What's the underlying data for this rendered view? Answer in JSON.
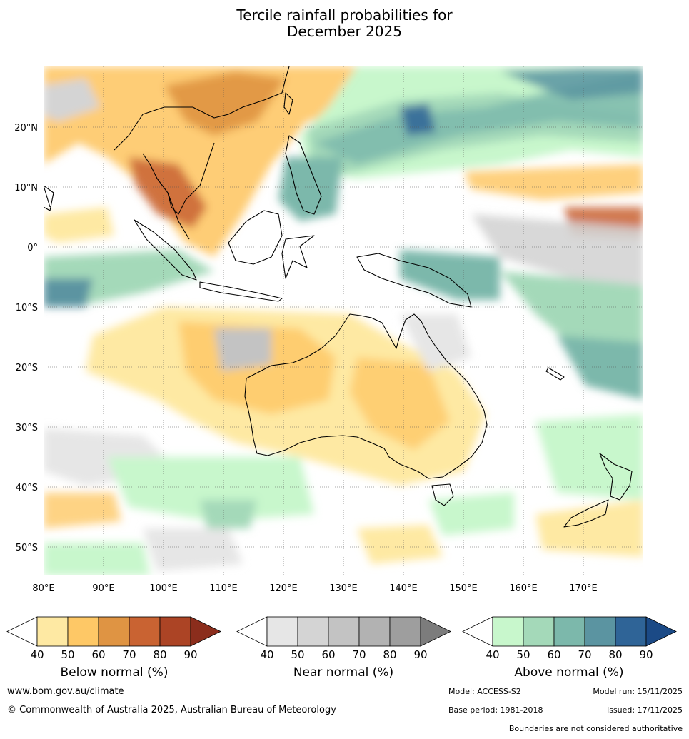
{
  "title_line1": "Tercile rainfall probabilities for",
  "title_line2": "December 2025",
  "map": {
    "lat_labels": [
      "20°N",
      "10°N",
      "0°",
      "10°S",
      "20°S",
      "30°S",
      "40°S",
      "50°S"
    ],
    "lon_labels": [
      "80°E",
      "90°E",
      "100°E",
      "110°E",
      "120°E",
      "130°E",
      "140°E",
      "150°E",
      "160°E",
      "170°E"
    ]
  },
  "colorbars": [
    {
      "label": "Below normal (%)",
      "ticks": [
        "40",
        "50",
        "60",
        "70",
        "80",
        "90"
      ],
      "colors": [
        "#ffffff",
        "#fee9a3",
        "#fec866",
        "#df9443",
        "#c96332",
        "#ac4425",
        "#8b2d1c"
      ]
    },
    {
      "label": "Near normal (%)",
      "ticks": [
        "40",
        "50",
        "60",
        "70",
        "80",
        "90"
      ],
      "colors": [
        "#ffffff",
        "#e6e6e6",
        "#d4d4d4",
        "#c3c3c3",
        "#b2b2b2",
        "#9e9e9e",
        "#7c7c7c"
      ]
    },
    {
      "label": "Above normal (%)",
      "ticks": [
        "40",
        "50",
        "60",
        "70",
        "80",
        "90"
      ],
      "colors": [
        "#ffffff",
        "#c8f7cc",
        "#a4d9b9",
        "#7cb8ab",
        "#5b94a1",
        "#2f6497",
        "#1b4a86"
      ]
    }
  ],
  "footer": {
    "website": "www.bom.gov.au/climate",
    "copyright": "© Commonwealth of Australia 2025, Australian Bureau of Meteorology",
    "model": "Model: ACCESS-S2",
    "base_period": "Base period: 1981-2018",
    "model_run": "Model run: 15/11/2025",
    "issued": "Issued: 17/11/2025",
    "disclaimer": "Boundaries are not considered authoritative"
  }
}
